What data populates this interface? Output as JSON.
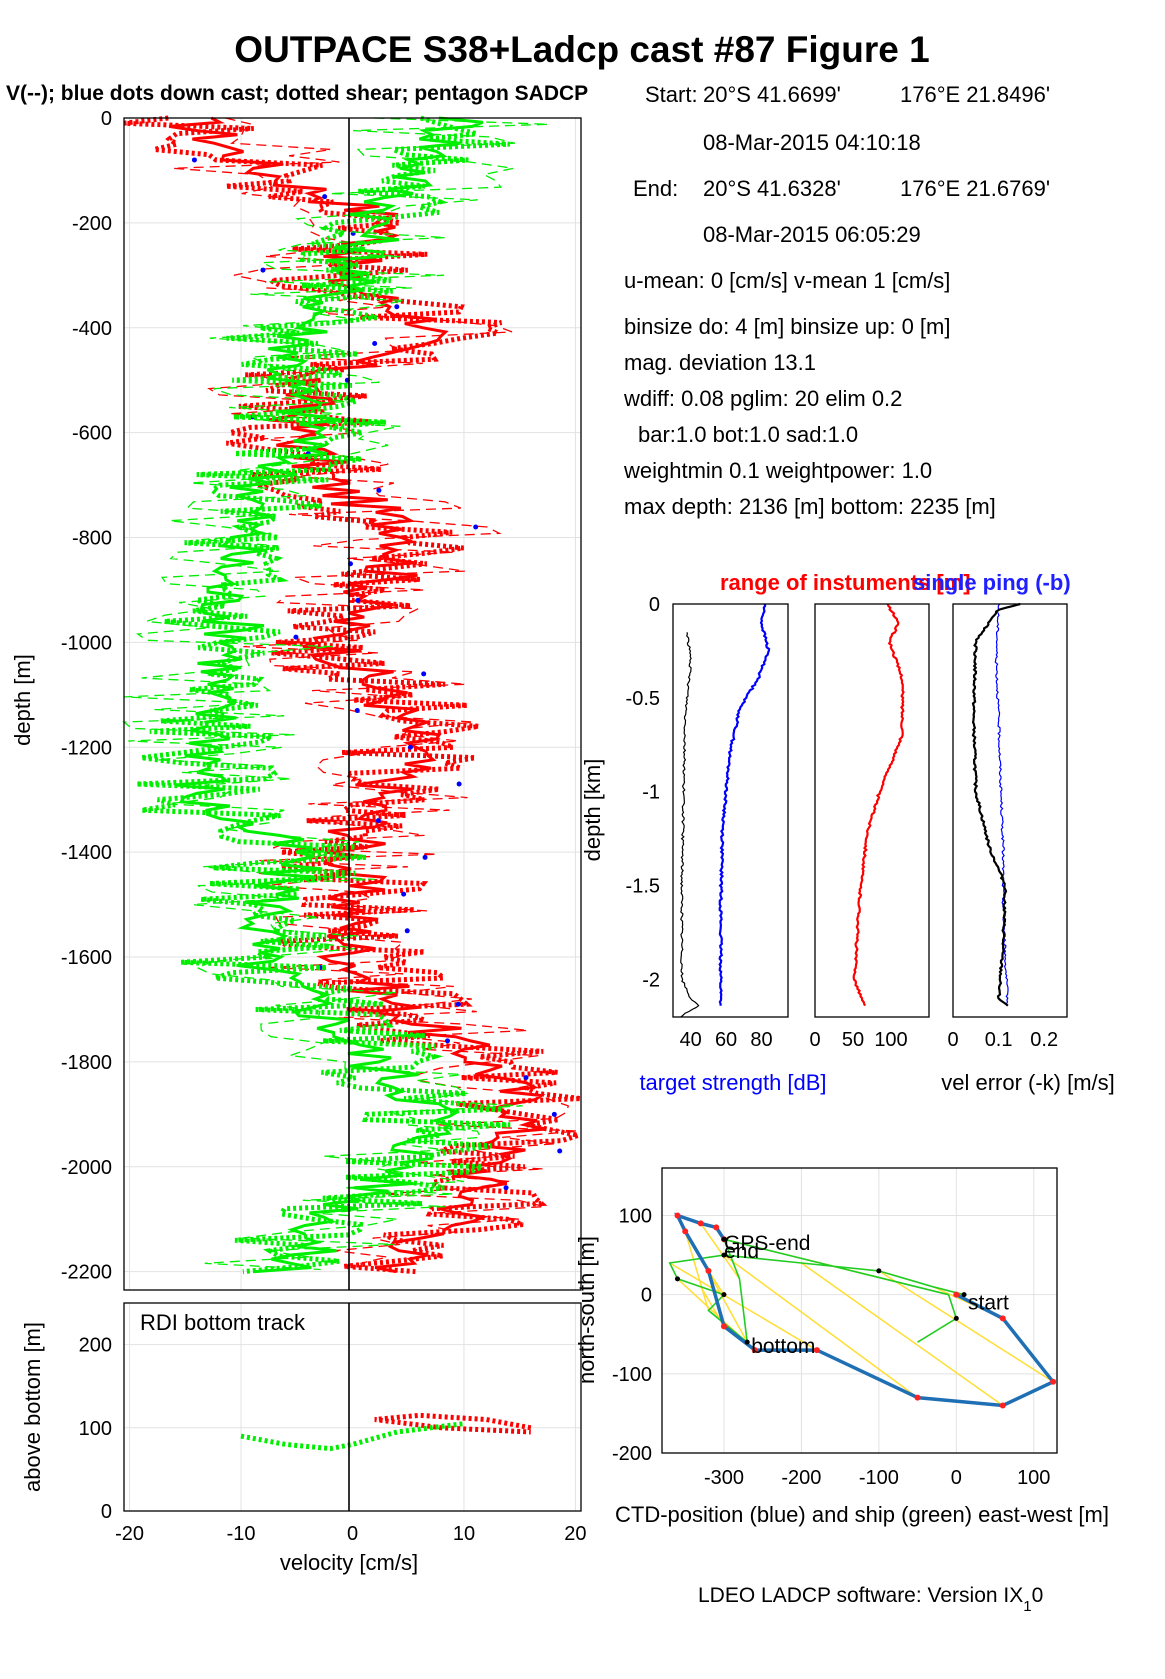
{
  "title": "OUTPACE S38+Ladcp cast #87  Figure 1",
  "subtitle": "V(--); blue dots down cast; dotted shear; pentagon SADCP",
  "info": {
    "start_label": "Start:",
    "start_lat": "20°S 41.6699'",
    "start_lon": "176°E 21.8496'",
    "start_time": "08-Mar-2015 04:10:18",
    "end_label": "End:",
    "end_lat": "20°S 41.6328'",
    "end_lon": "176°E 21.6769'",
    "end_time": "08-Mar-2015 06:05:29",
    "means": "u-mean:   0 [cm/s]    v-mean   1 [cm/s]",
    "binsize": "binsize do: 4 [m]  binsize up:  0 [m]",
    "magdev": "mag. deviation 13.1",
    "wdiff": "wdiff: 0.08  pglim: 20  elim 0.2",
    "bar": "bar:1.0 bot:1.0 sad:1.0",
    "weight": "weightmin 0.1  weightpower: 1.0",
    "depth": "max depth: 2136 [m]    bottom: 2235 [m]"
  },
  "footer": "LDEO LADCP software: Version IX",
  "footer_sub": "1",
  "footer_end": "0",
  "colors": {
    "u": "#ff0000",
    "v": "#00ee00",
    "down": "#0000ff",
    "ctd": "#1f6fb4",
    "ship": "#22cc22",
    "link": "#ffdd33"
  },
  "chart_data": [
    {
      "type": "line",
      "title": "",
      "xlabel": "",
      "ylabel": "depth [m]",
      "xlim": [
        -20.5,
        20.5
      ],
      "ylim": [
        -2235,
        0
      ],
      "xticks": [
        "",
        "",
        "",
        "",
        ""
      ],
      "yticks": [
        "0",
        "-200",
        "-400",
        "-600",
        "-800",
        "-1000",
        "-1200",
        "-1400",
        "-1600",
        "-1800",
        "-2000",
        "-2200"
      ],
      "grid": true,
      "series": [
        {
          "name": "u",
          "color": "#ff0000",
          "depth": [
            0,
            -100,
            -200,
            -300,
            -400,
            -500,
            -600,
            -700,
            -800,
            -900,
            -1000,
            -1100,
            -1200,
            -1300,
            -1400,
            -1500,
            -1600,
            -1700,
            -1800,
            -1900,
            -2000,
            -2100,
            -2200
          ],
          "values": [
            -15,
            -8,
            4,
            -2,
            8,
            -4,
            -5,
            -2,
            6,
            2,
            -2,
            3,
            6,
            2,
            0,
            0,
            0,
            4,
            12,
            16,
            12,
            10,
            2
          ]
        },
        {
          "name": "v",
          "color": "#00ee00",
          "depth": [
            0,
            -100,
            -200,
            -300,
            -400,
            -500,
            -600,
            -700,
            -800,
            -900,
            -1000,
            -1100,
            -1200,
            -1300,
            -1400,
            -1500,
            -1600,
            -1700,
            -1800,
            -1900,
            -2000,
            -2100,
            -2200
          ],
          "values": [
            10,
            6,
            2,
            0,
            -4,
            -6,
            -3,
            -8,
            -10,
            -12,
            -10,
            -13,
            -12,
            -14,
            -5,
            -7,
            -9,
            -3,
            2,
            8,
            5,
            -2,
            -6
          ]
        }
      ]
    },
    {
      "type": "line",
      "title": "RDI bottom track",
      "xlabel": "velocity [cm/s]",
      "ylabel": "above bottom [m]",
      "xlim": [
        -20.5,
        20.5
      ],
      "ylim": [
        0,
        250
      ],
      "xticks": [
        "-20",
        "-10",
        "0",
        "10",
        "20"
      ],
      "yticks": [
        "0",
        "100",
        "200"
      ],
      "grid": true,
      "series": [
        {
          "name": "u",
          "color": "#ff0000",
          "height": [
            100,
            110,
            115,
            110,
            100,
            95
          ],
          "values": [
            16,
            12,
            6,
            2,
            8,
            16
          ]
        },
        {
          "name": "v",
          "color": "#00ee00",
          "height": [
            90,
            80,
            75,
            80,
            95,
            105
          ],
          "values": [
            -10,
            -6,
            -2,
            0,
            4,
            10
          ]
        }
      ]
    },
    {
      "type": "line",
      "title": "",
      "xlabel": "target strength [dB]",
      "ylabel": "depth [km]",
      "top_labels": [
        "range of instuments [m]",
        "single ping (-b)"
      ],
      "xlim": [
        30,
        95
      ],
      "ylim": [
        -2.2,
        0
      ],
      "xticks": [
        "40",
        "60",
        "80"
      ],
      "yticks": [
        "0",
        "-0.5",
        "-1",
        "-1.5",
        "-2"
      ],
      "series": [
        {
          "name": "target strength",
          "color": "#0000ff",
          "depth": [
            0,
            -0.1,
            -0.25,
            -0.4,
            -0.55,
            -0.8,
            -1.2,
            -1.6,
            -2.0,
            -2.14
          ],
          "values": [
            82,
            80,
            84,
            78,
            68,
            62,
            58,
            57,
            57,
            57
          ]
        },
        {
          "name": "black",
          "color": "#000000",
          "depth": [
            -0.15,
            -0.3,
            -0.6,
            -1.0,
            -1.5,
            -2.0,
            -2.1,
            -2.14,
            -2.2
          ],
          "values": [
            38,
            40,
            37,
            36,
            35,
            35,
            40,
            44,
            34
          ]
        }
      ]
    },
    {
      "type": "line",
      "title": "",
      "xlabel": "",
      "ylabel": "",
      "xlim": [
        0,
        150
      ],
      "ylim": [
        -2.2,
        0
      ],
      "xticks": [
        "0",
        "50",
        "100"
      ],
      "series": [
        {
          "name": "range",
          "color": "#ff0000",
          "depth": [
            0,
            -0.1,
            -0.2,
            -0.4,
            -0.7,
            -0.85,
            -1.0,
            -1.2,
            -1.5,
            -1.8,
            -2.0,
            -2.14
          ],
          "values": [
            95,
            110,
            98,
            115,
            115,
            100,
            85,
            70,
            60,
            55,
            52,
            65
          ]
        }
      ]
    },
    {
      "type": "line",
      "title": "",
      "xlabel": "vel error (-k) [m/s]",
      "ylabel": "",
      "xlim": [
        0,
        0.25
      ],
      "ylim": [
        -2.2,
        0
      ],
      "xticks": [
        "0",
        "0.1",
        "0.2"
      ],
      "series": [
        {
          "name": "single ping",
          "color": "#0000ff",
          "depth": [
            0,
            -0.3,
            -0.6,
            -1.0,
            -1.3,
            -1.6,
            -1.9,
            -2.14
          ],
          "values": [
            0.1,
            0.095,
            0.1,
            0.105,
            0.11,
            0.11,
            0.115,
            0.12
          ]
        },
        {
          "name": "vel error",
          "color": "#000000",
          "depth": [
            0,
            -0.03,
            -0.2,
            -0.6,
            -1.0,
            -1.3,
            -1.5,
            -1.8,
            -2.1,
            -2.14
          ],
          "values": [
            0.15,
            0.1,
            0.05,
            0.045,
            0.05,
            0.08,
            0.115,
            0.11,
            0.1,
            0.12
          ]
        }
      ]
    },
    {
      "type": "line",
      "title": "",
      "xlabel": "CTD-position (blue) and ship (green) east-west [m]",
      "ylabel": "north-south [m]",
      "xlim": [
        -380,
        130
      ],
      "ylim": [
        -200,
        160
      ],
      "xticks": [
        "-300",
        "-200",
        "-100",
        "0",
        "100"
      ],
      "yticks": [
        "100",
        "0",
        "-100",
        "-200"
      ],
      "grid": true,
      "labels": [
        "start",
        "end",
        "GPS-end",
        "bottom"
      ],
      "series": [
        {
          "name": "CTD",
          "color": "#1f6fb4",
          "x": [
            0,
            60,
            125,
            60,
            -50,
            -180,
            -260,
            -300,
            -320,
            -350,
            -360,
            -330,
            -310,
            -300
          ],
          "y": [
            0,
            -30,
            -110,
            -140,
            -130,
            -70,
            -70,
            -40,
            30,
            80,
            100,
            90,
            85,
            70
          ]
        },
        {
          "name": "ship",
          "color": "#22cc22",
          "x": [
            10,
            -30,
            -100,
            -200,
            -300,
            -370,
            -360,
            -330,
            -300,
            -320,
            -270,
            -280,
            -300,
            -10,
            0,
            -50
          ],
          "y": [
            0,
            10,
            30,
            40,
            50,
            40,
            20,
            10,
            0,
            -20,
            -60,
            20,
            70,
            0,
            -30,
            -60
          ]
        }
      ]
    }
  ]
}
